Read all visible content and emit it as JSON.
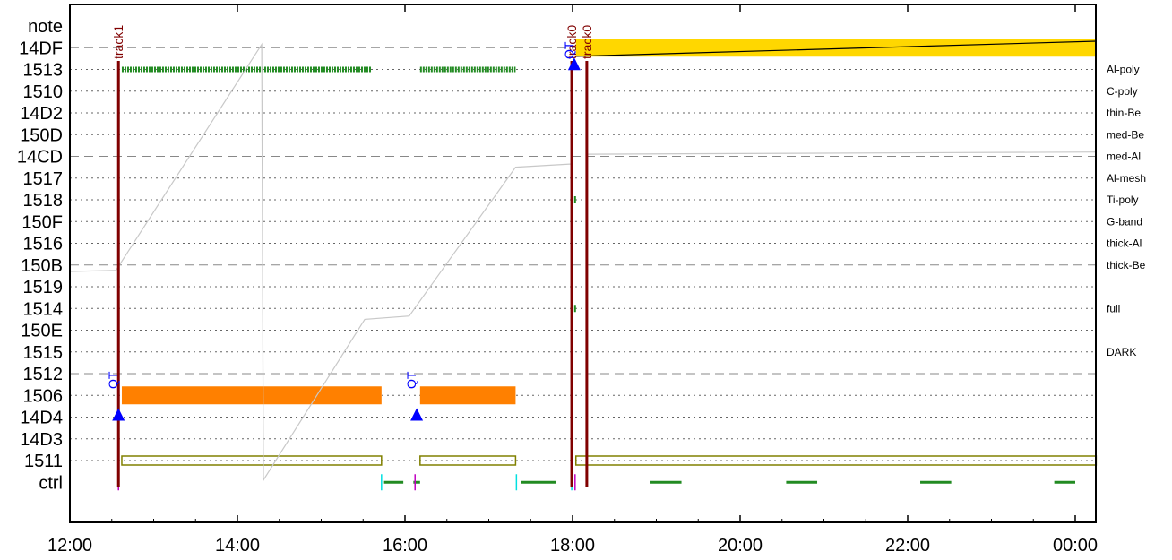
{
  "colors": {
    "track": "#800000",
    "qt": "#0000ff",
    "green": "#228b22",
    "orange": "#ff8000",
    "gold": "#ffd700",
    "olive": "#808000",
    "grey": "#c8c8c8",
    "cyan": "#00e0e0",
    "magenta": "#c000c0"
  },
  "chart_data": {
    "type": "timeline",
    "x_ticks": [
      {
        "label": "12:00",
        "hour": 12
      },
      {
        "label": "14:00",
        "hour": 14
      },
      {
        "label": "16:00",
        "hour": 16
      },
      {
        "label": "18:00",
        "hour": 18
      },
      {
        "label": "20:00",
        "hour": 20
      },
      {
        "label": "22:00",
        "hour": 22
      },
      {
        "label": "00:00",
        "hour": 24
      }
    ],
    "xlim": [
      12.0,
      24.25
    ],
    "rows": [
      "note",
      "14DF",
      "1513",
      "1510",
      "14D2",
      "150D",
      "14CD",
      "1517",
      "1518",
      "150F",
      "1516",
      "150B",
      "1519",
      "1514",
      "150E",
      "1515",
      "1512",
      "1506",
      "14D4",
      "14D3",
      "1511",
      "ctrl"
    ],
    "dashed_rows": [
      "14DF",
      "14CD",
      "150B",
      "1512"
    ],
    "right_labels": [
      {
        "row": "1513",
        "label": "Al-poly"
      },
      {
        "row": "1510",
        "label": "C-poly"
      },
      {
        "row": "14D2",
        "label": "thin-Be"
      },
      {
        "row": "150D",
        "label": "med-Be"
      },
      {
        "row": "14CD",
        "label": "med-Al"
      },
      {
        "row": "1517",
        "label": "Al-mesh"
      },
      {
        "row": "1518",
        "label": "Ti-poly"
      },
      {
        "row": "150F",
        "label": "G-band"
      },
      {
        "row": "1516",
        "label": "thick-Al"
      },
      {
        "row": "150B",
        "label": "thick-Be"
      },
      {
        "row": "1514",
        "label": "full"
      },
      {
        "row": "1515",
        "label": "DARK"
      }
    ],
    "tracks": [
      {
        "label": "track1",
        "hour": 12.58
      },
      {
        "label": "track0",
        "hour": 17.99
      },
      {
        "label": "track0",
        "hour": 18.17
      }
    ],
    "qt_markers": [
      {
        "label": "QT",
        "hour": 12.58,
        "row": "1506"
      },
      {
        "label": "QT",
        "hour": 16.14,
        "row": "1506"
      },
      {
        "label": "QT",
        "hour": 18.02,
        "row": "14DF"
      }
    ],
    "green_dash_bars": [
      {
        "row": "1513",
        "start": 12.62,
        "end": 15.6
      },
      {
        "row": "1513",
        "start": 16.18,
        "end": 17.32
      }
    ],
    "green_ticks": [
      {
        "row": "1518",
        "hour": 18.03
      },
      {
        "row": "1514",
        "hour": 18.03
      }
    ],
    "orange_bars": [
      {
        "row": "1506",
        "start": 12.62,
        "end": 15.72
      },
      {
        "row": "1506",
        "start": 16.18,
        "end": 17.32
      }
    ],
    "gold_bars": [
      {
        "row": "14DF",
        "start": 18.04,
        "end": 24.25
      }
    ],
    "olive_boxes": [
      {
        "row": "1511",
        "start": 12.62,
        "end": 15.72
      },
      {
        "row": "1511",
        "start": 16.18,
        "end": 17.32
      },
      {
        "row": "1511",
        "start": 18.04,
        "end": 24.25
      }
    ],
    "ctrl_segments": [
      {
        "start": 15.75,
        "end": 15.98,
        "color": "green"
      },
      {
        "start": 16.1,
        "end": 16.18,
        "color": "green"
      },
      {
        "start": 17.38,
        "end": 17.8,
        "color": "green"
      },
      {
        "start": 18.92,
        "end": 19.3,
        "color": "green"
      },
      {
        "start": 20.55,
        "end": 20.92,
        "color": "green"
      },
      {
        "start": 22.15,
        "end": 22.52,
        "color": "green"
      },
      {
        "start": 23.75,
        "end": 24.0,
        "color": "green"
      }
    ],
    "ctrl_ticks": [
      {
        "hour": 12.58,
        "color": "magenta"
      },
      {
        "hour": 15.72,
        "color": "cyan"
      },
      {
        "hour": 16.12,
        "color": "magenta"
      },
      {
        "hour": 17.33,
        "color": "cyan"
      },
      {
        "hour": 17.99,
        "color": "cyan"
      },
      {
        "hour": 18.03,
        "color": "magenta"
      }
    ],
    "grey_line": [
      {
        "x": 12.0,
        "row": 11.3
      },
      {
        "x": 12.55,
        "row": 11.25
      },
      {
        "x": 14.29,
        "row": 0.85
      },
      {
        "x": 14.31,
        "row": 20.9
      },
      {
        "x": 15.52,
        "row": 13.5
      },
      {
        "x": 16.05,
        "row": 13.35
      },
      {
        "x": 17.32,
        "row": 6.5
      },
      {
        "x": 17.99,
        "row": 6.35
      }
    ],
    "grey_line2": [
      {
        "x": 18.17,
        "row": 5.9
      },
      {
        "x": 24.25,
        "row": 5.8
      }
    ],
    "black_line": [
      {
        "x": 18.03,
        "row": 1.4
      },
      {
        "x": 24.25,
        "row": 0.7
      }
    ]
  }
}
